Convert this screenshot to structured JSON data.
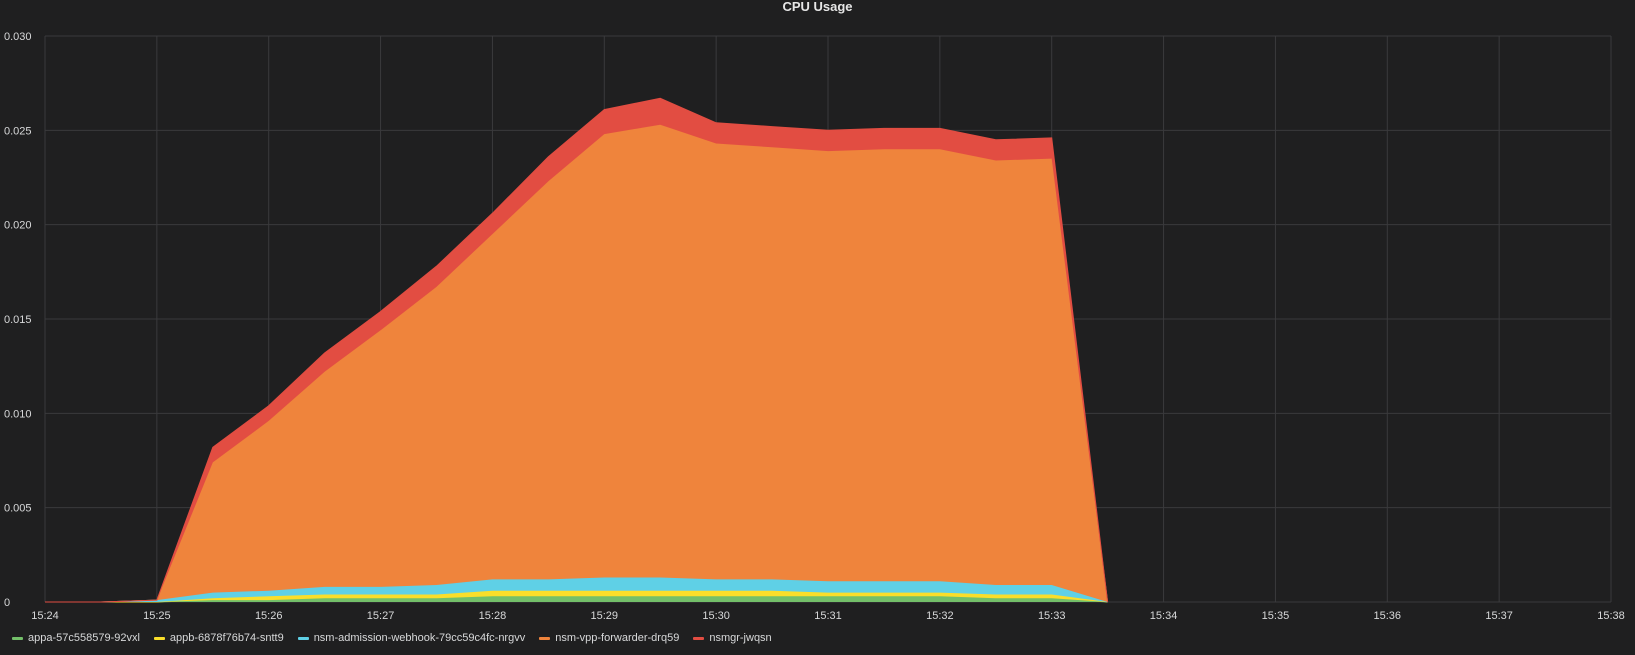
{
  "panel": {
    "title": "CPU Usage"
  },
  "chart_data": {
    "type": "area",
    "title": "CPU Usage",
    "stacked": true,
    "grid": true,
    "legend_placement": "bottom-left",
    "xlabel": "",
    "ylabel": "",
    "xlim": [
      "15:24",
      "15:38"
    ],
    "ylim": [
      0,
      0.03
    ],
    "x_ticks": [
      "15:24",
      "15:25",
      "15:26",
      "15:27",
      "15:28",
      "15:29",
      "15:30",
      "15:31",
      "15:32",
      "15:33",
      "15:34",
      "15:35",
      "15:36",
      "15:37",
      "15:38"
    ],
    "y_ticks": [
      "0",
      "0.005",
      "0.010",
      "0.015",
      "0.020",
      "0.025",
      "0.030"
    ],
    "x": [
      "15:24:00",
      "15:24:30",
      "15:25:00",
      "15:25:30",
      "15:26:00",
      "15:26:30",
      "15:27:00",
      "15:27:30",
      "15:28:00",
      "15:28:30",
      "15:29:00",
      "15:29:30",
      "15:30:00",
      "15:30:30",
      "15:31:00",
      "15:31:30",
      "15:32:00",
      "15:32:30",
      "15:33:00",
      "15:33:30"
    ],
    "series": [
      {
        "name": "appa-57c558579-92vxl",
        "color": "#73bf69",
        "values": [
          0,
          0,
          0,
          0.0001,
          0.0001,
          0.0002,
          0.0002,
          0.0002,
          0.0003,
          0.0003,
          0.0003,
          0.0003,
          0.0003,
          0.0003,
          0.0003,
          0.0003,
          0.0003,
          0.0002,
          0.0002,
          0
        ]
      },
      {
        "name": "appb-6878f76b74-sntt9",
        "color": "#fade2a",
        "values": [
          0,
          0,
          0,
          0.0001,
          0.0002,
          0.0002,
          0.0002,
          0.0002,
          0.0003,
          0.0003,
          0.0003,
          0.0003,
          0.0003,
          0.0003,
          0.0002,
          0.0002,
          0.0002,
          0.0002,
          0.0002,
          0
        ]
      },
      {
        "name": "nsm-admission-webhook-79cc59c4fc-nrgvv",
        "color": "#5fd0e6",
        "values": [
          0,
          0,
          0.0001,
          0.0003,
          0.0003,
          0.0004,
          0.0004,
          0.0005,
          0.0006,
          0.0006,
          0.0007,
          0.0007,
          0.0006,
          0.0006,
          0.0006,
          0.0006,
          0.0006,
          0.0005,
          0.0005,
          0
        ]
      },
      {
        "name": "nsm-vpp-forwarder-drq59",
        "color": "#ef843c",
        "values": [
          0,
          0,
          0,
          0.0069,
          0.009,
          0.0114,
          0.0136,
          0.0158,
          0.0183,
          0.0211,
          0.0235,
          0.024,
          0.0231,
          0.0229,
          0.0228,
          0.0229,
          0.0229,
          0.0225,
          0.0226,
          0
        ]
      },
      {
        "name": "nsmgr-jwqsn",
        "color": "#e24d42",
        "values": [
          0,
          0,
          0,
          0.0008,
          0.0008,
          0.001,
          0.001,
          0.0011,
          0.0011,
          0.0013,
          0.0013,
          0.0014,
          0.0011,
          0.0011,
          0.0011,
          0.0011,
          0.0011,
          0.0011,
          0.0011,
          0
        ]
      }
    ]
  }
}
